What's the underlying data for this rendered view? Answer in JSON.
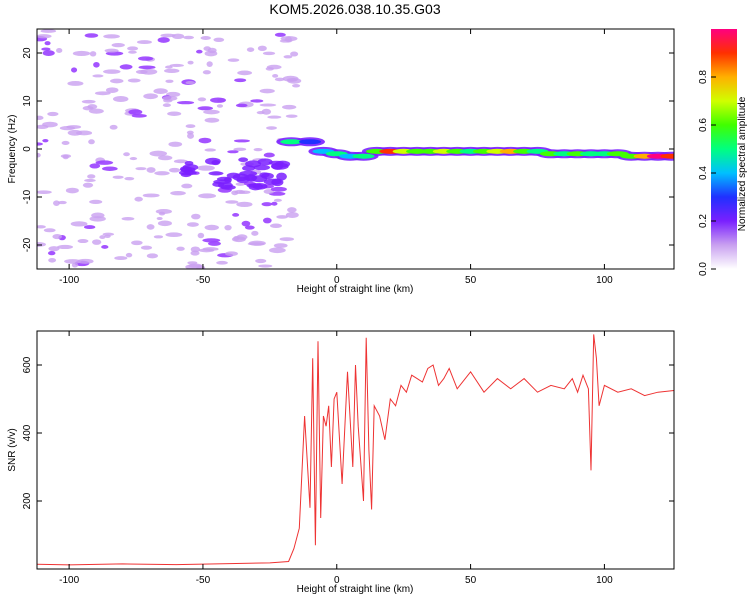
{
  "title": "KOM5.2026.038.10.35.G03",
  "chart_data": [
    {
      "type": "heatmap",
      "xlabel": "Height of straight line (km)",
      "ylabel": "Frequency (Hz)",
      "xlim": [
        -112,
        126
      ],
      "ylim": [
        -25,
        25
      ],
      "xticks": [
        -100,
        -50,
        0,
        50,
        100
      ],
      "yticks": [
        -20,
        -10,
        0,
        10,
        20
      ],
      "colorbar": {
        "label": "Normalized spectral amplitude",
        "range": [
          0,
          1
        ],
        "ticks": [
          "0.0",
          "0.2",
          "0.4",
          "0.6",
          "0.8"
        ],
        "tick_values": [
          0.0,
          0.2,
          0.4,
          0.6,
          0.8
        ],
        "colormap": [
          "#ffffff",
          "#c9a0f0",
          "#7a20ff",
          "#2030ff",
          "#00c0ff",
          "#00ff80",
          "#40ff00",
          "#d0ff00",
          "#ffb000",
          "#ff3000",
          "#ff0080"
        ]
      },
      "ridge": [
        {
          "x": -17,
          "y": 1.5,
          "z": 0.45
        },
        {
          "x": -10,
          "y": 1.5,
          "z": 0.3
        },
        {
          "x": -5,
          "y": -0.5,
          "z": 0.35
        },
        {
          "x": 0,
          "y": -1.0,
          "z": 0.45
        },
        {
          "x": 5,
          "y": -1.5,
          "z": 0.35
        },
        {
          "x": 10,
          "y": -1.5,
          "z": 0.45
        },
        {
          "x": 15,
          "y": -0.5,
          "z": 0.55
        },
        {
          "x": 20,
          "y": -0.5,
          "z": 0.85
        },
        {
          "x": 25,
          "y": -0.5,
          "z": 0.7
        },
        {
          "x": 30,
          "y": -0.5,
          "z": 0.55
        },
        {
          "x": 35,
          "y": -0.5,
          "z": 0.6
        },
        {
          "x": 40,
          "y": -0.5,
          "z": 0.7
        },
        {
          "x": 45,
          "y": -0.5,
          "z": 0.6
        },
        {
          "x": 50,
          "y": -0.5,
          "z": 0.45
        },
        {
          "x": 55,
          "y": -0.5,
          "z": 0.55
        },
        {
          "x": 60,
          "y": -0.5,
          "z": 0.65
        },
        {
          "x": 65,
          "y": -0.5,
          "z": 0.8
        },
        {
          "x": 70,
          "y": -0.5,
          "z": 0.6
        },
        {
          "x": 75,
          "y": -0.5,
          "z": 0.5
        },
        {
          "x": 80,
          "y": -1.0,
          "z": 0.6
        },
        {
          "x": 85,
          "y": -1.0,
          "z": 0.45
        },
        {
          "x": 90,
          "y": -1.0,
          "z": 0.55
        },
        {
          "x": 95,
          "y": -1.0,
          "z": 0.5
        },
        {
          "x": 100,
          "y": -1.0,
          "z": 0.45
        },
        {
          "x": 105,
          "y": -1.0,
          "z": 0.55
        },
        {
          "x": 110,
          "y": -1.5,
          "z": 0.6
        },
        {
          "x": 115,
          "y": -1.5,
          "z": 0.75
        },
        {
          "x": 120,
          "y": -1.5,
          "z": 0.95
        },
        {
          "x": 125,
          "y": -1.5,
          "z": 0.9
        }
      ]
    },
    {
      "type": "line",
      "xlabel": "Height of straight line (km)",
      "ylabel": "SNR (v/v)",
      "xlim": [
        -112,
        126
      ],
      "ylim": [
        0,
        700
      ],
      "xticks": [
        -100,
        -50,
        0,
        50,
        100
      ],
      "yticks": [
        200,
        400,
        600
      ],
      "color": "#ee3333",
      "x": [
        -112,
        -100,
        -80,
        -60,
        -40,
        -25,
        -18,
        -16,
        -14,
        -12,
        -10,
        -9,
        -8,
        -7,
        -6,
        -5,
        -4,
        -3,
        -2,
        -1,
        0,
        2,
        4,
        6,
        7,
        8,
        10,
        11,
        12,
        13,
        14,
        16,
        18,
        20,
        22,
        24,
        26,
        28,
        30,
        32,
        34,
        36,
        38,
        40,
        42,
        45,
        50,
        55,
        60,
        65,
        70,
        75,
        80,
        85,
        88,
        90,
        92,
        94,
        95,
        96,
        97,
        98,
        100,
        105,
        110,
        115,
        120,
        126
      ],
      "y": [
        14,
        12,
        15,
        13,
        16,
        18,
        22,
        60,
        120,
        450,
        180,
        620,
        70,
        670,
        150,
        450,
        420,
        480,
        300,
        500,
        520,
        250,
        580,
        300,
        600,
        420,
        200,
        680,
        350,
        175,
        480,
        450,
        380,
        500,
        480,
        540,
        520,
        570,
        560,
        550,
        590,
        600,
        540,
        560,
        590,
        530,
        580,
        520,
        560,
        530,
        560,
        520,
        540,
        530,
        560,
        520,
        570,
        530,
        290,
        690,
        620,
        480,
        540,
        520,
        530,
        510,
        520,
        525
      ]
    }
  ]
}
